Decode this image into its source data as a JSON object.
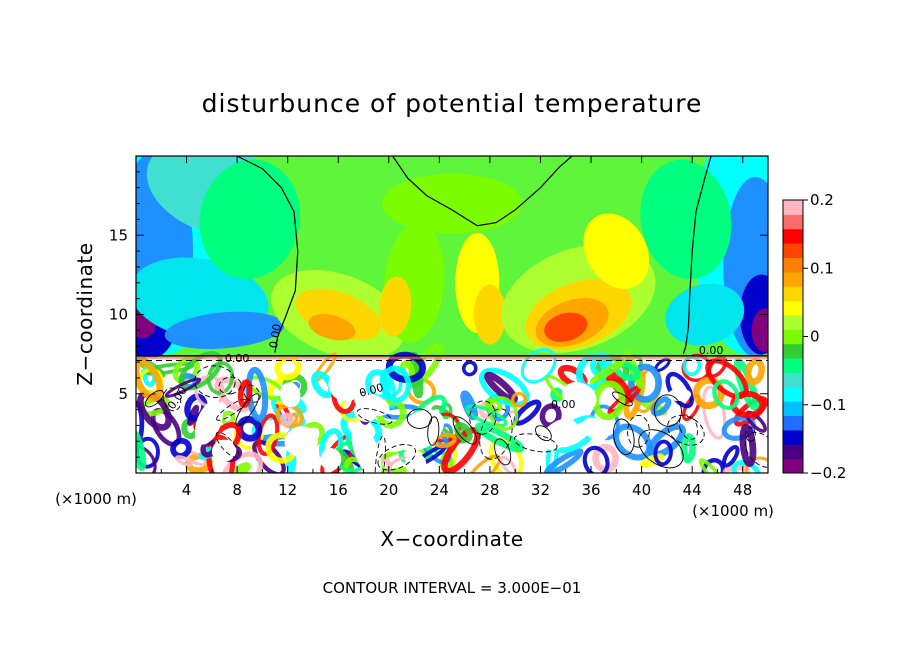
{
  "chart_data": {
    "type": "heatmap",
    "title": "disturbunce of potential temperature",
    "xlabel": "X−coordinate",
    "ylabel": "Z−coordinate",
    "x_unit_label": "(×1000 m)",
    "xlim": [
      0,
      50
    ],
    "ylim": [
      0,
      20
    ],
    "x_ticks": [
      4,
      8,
      12,
      16,
      20,
      24,
      28,
      32,
      36,
      40,
      44,
      48
    ],
    "y_ticks": [
      5,
      10,
      15
    ],
    "colorbar": {
      "range": [
        -0.2,
        0.2
      ],
      "ticks": [
        -0.2,
        -0.1,
        0,
        0.1,
        0.2
      ],
      "tick_labels": [
        "−0.2",
        "−0.1",
        "0",
        "0.1",
        "0.2"
      ],
      "colors": [
        "#800080",
        "#4b0082",
        "#0000cd",
        "#1e6fff",
        "#00bfff",
        "#00ffff",
        "#40e0d0",
        "#00ff7f",
        "#32cd32",
        "#7cfc00",
        "#adff2f",
        "#ffff00",
        "#ffd700",
        "#ffa500",
        "#ff7f00",
        "#ff4500",
        "#ff0000",
        "#ff6a6a",
        "#ffb6c1"
      ]
    },
    "contour_labels": [
      "0.00",
      "0.00",
      "0.00",
      "0.00",
      "0.00",
      "0.00"
    ],
    "footer": "CONTOUR INTERVAL = 3.000E−01"
  }
}
